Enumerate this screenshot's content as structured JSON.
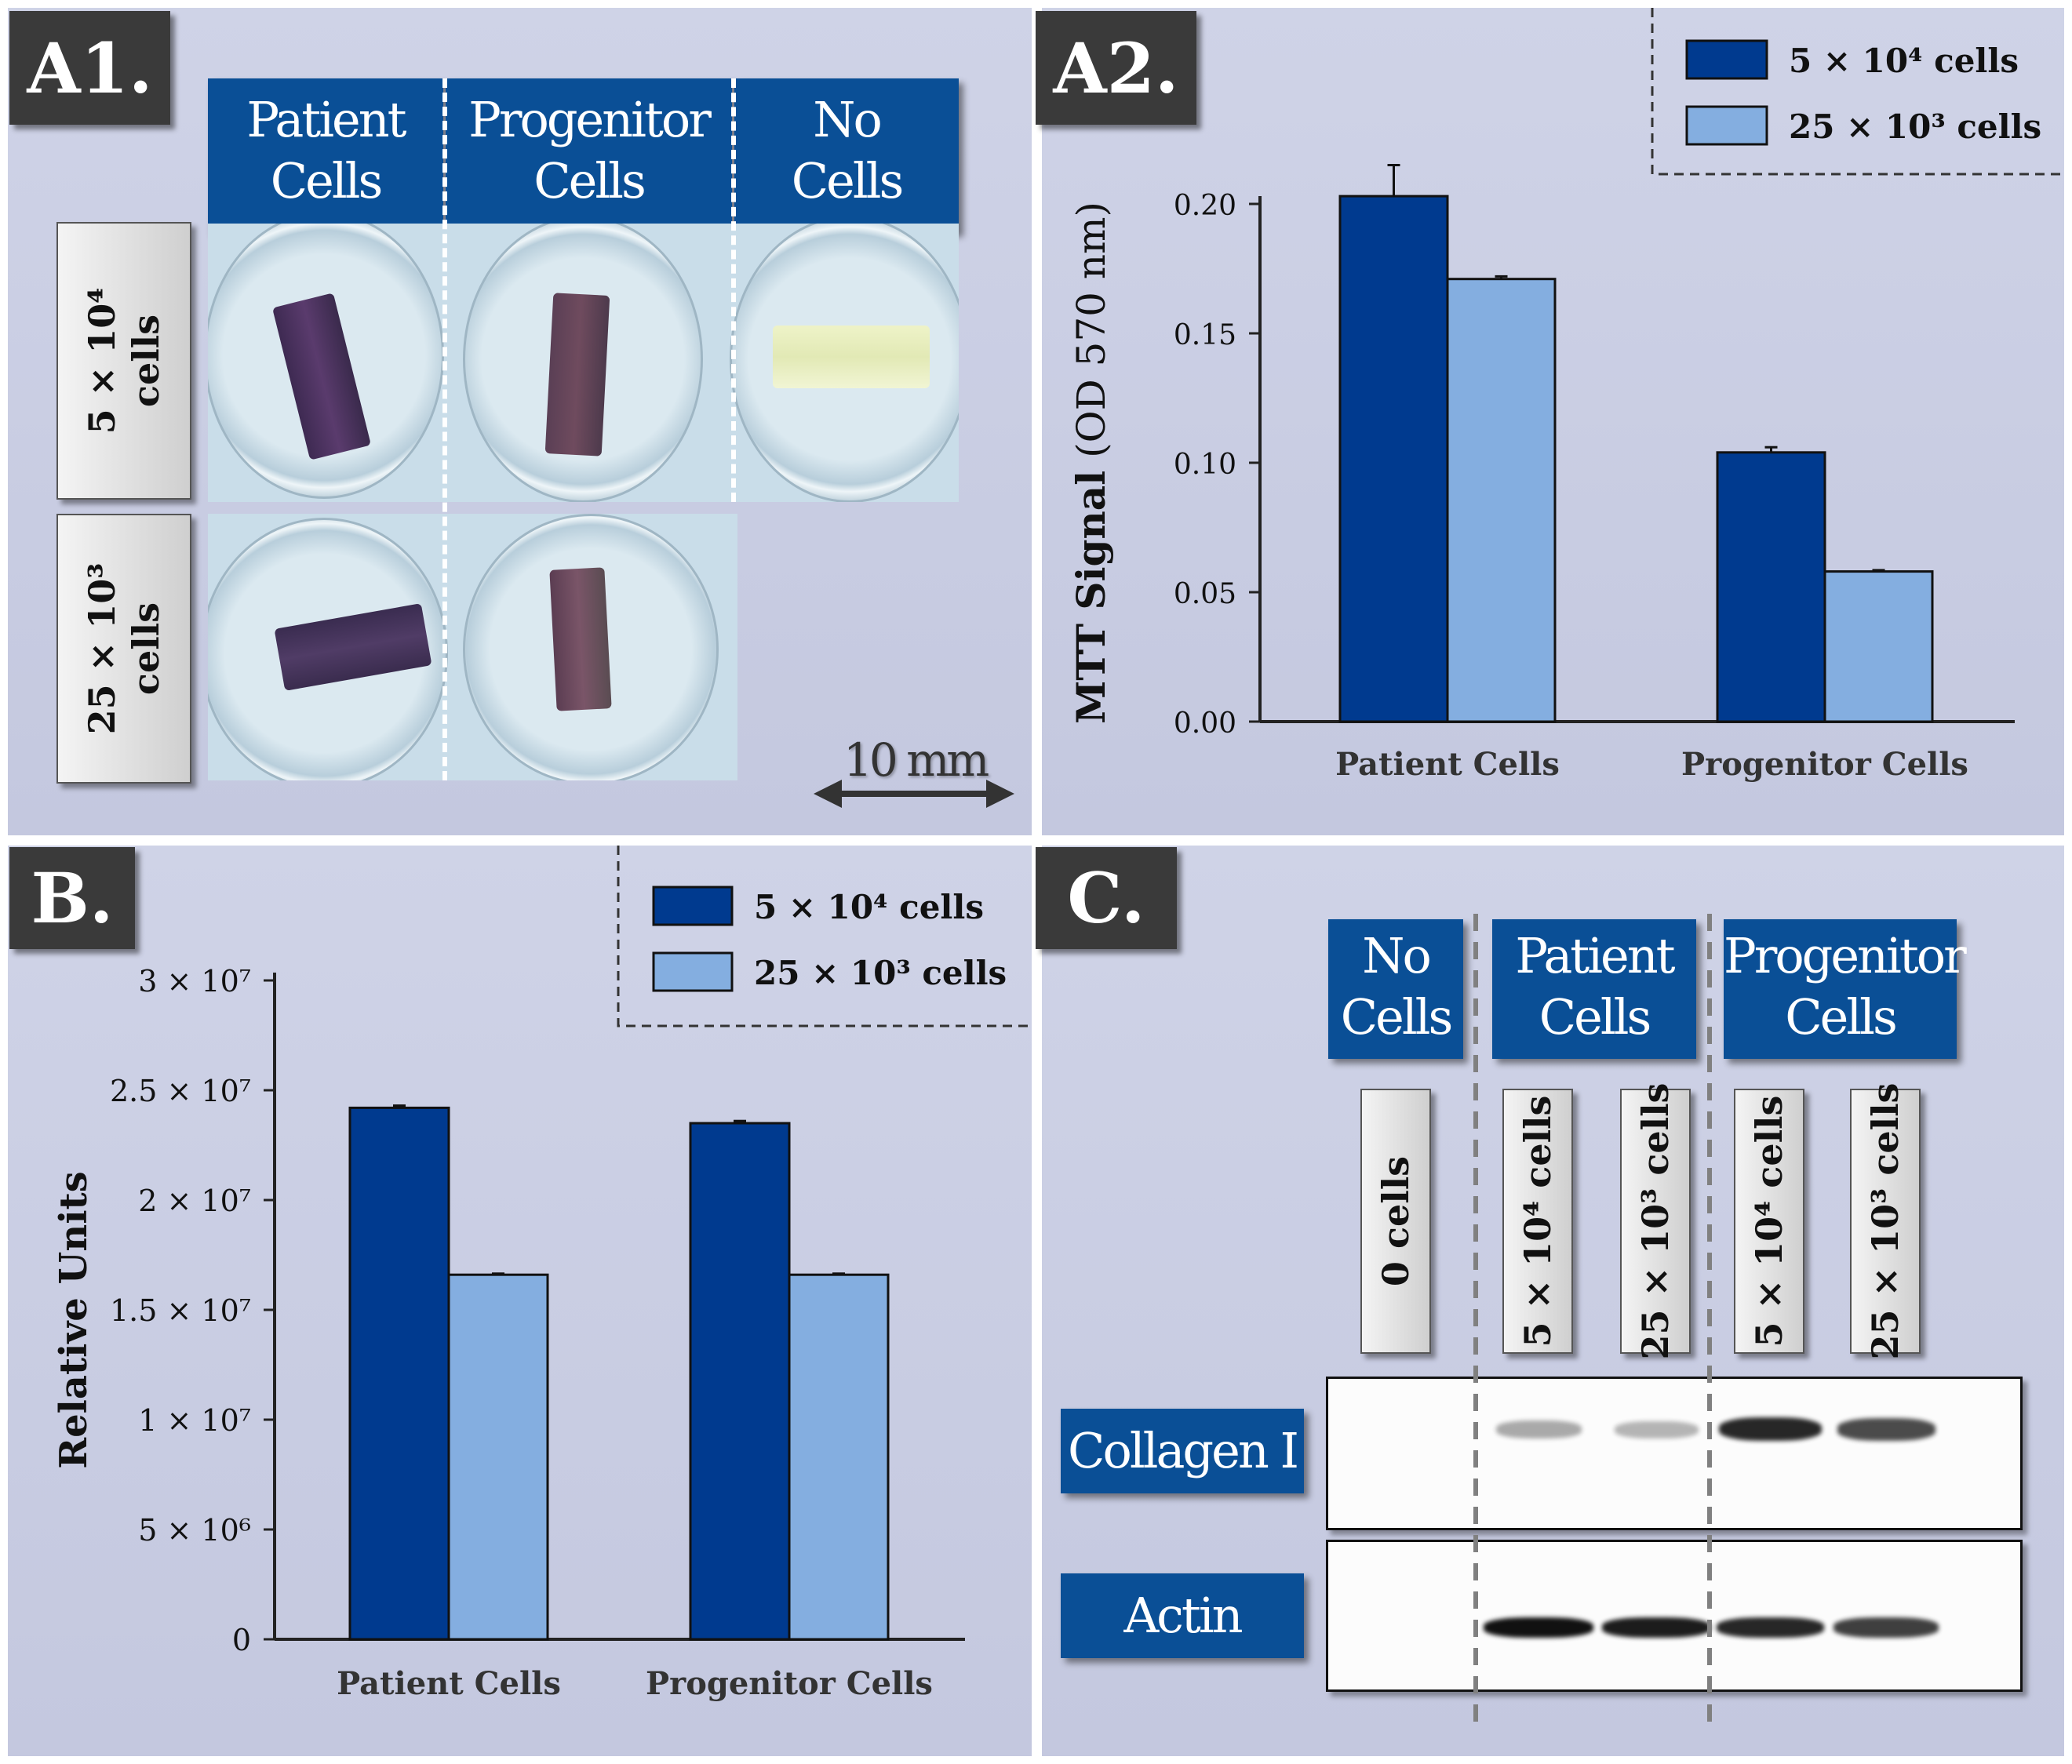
{
  "panels": {
    "a1": {
      "label": "A1.",
      "col_headers": [
        {
          "line1": "Patient",
          "line2": "Cells"
        },
        {
          "line1": "Progenitor",
          "line2": "Cells"
        },
        {
          "line1": "No",
          "line2": "Cells"
        }
      ],
      "row_headers": [
        {
          "line1": "5 × 10⁴",
          "line2": "cells"
        },
        {
          "line1": "25 × 10³",
          "line2": "cells"
        }
      ],
      "scale_bar": "10 mm"
    },
    "a2": {
      "label": "A2."
    },
    "b": {
      "label": "B."
    },
    "c": {
      "label": "C.",
      "group_headers": [
        {
          "line1": "No",
          "line2": "Cells"
        },
        {
          "line1": "Patient",
          "line2": "Cells"
        },
        {
          "line1": "Progenitor",
          "line2": "Cells"
        }
      ],
      "lanes": [
        "0 cells",
        "5 × 10⁴ cells",
        "25 × 10³ cells",
        "5 × 10⁴ cells",
        "25 × 10³ cells"
      ],
      "blots": [
        {
          "label": "Collagen I",
          "intensities": [
            0,
            0.35,
            0.3,
            0.9,
            0.75
          ]
        },
        {
          "label": "Actin",
          "intensities": [
            0,
            1,
            0.95,
            0.9,
            0.8
          ]
        }
      ]
    }
  },
  "colors": {
    "dark": "#003a8f",
    "light": "#84aee0"
  },
  "chart_data": [
    {
      "id": "A2",
      "type": "bar",
      "title": "",
      "categories": [
        "Patient Cells",
        "Progenitor Cells"
      ],
      "series": [
        {
          "name": "5 × 10⁴ cells",
          "values": [
            0.203,
            0.104
          ],
          "errors": [
            0.012,
            0.002
          ]
        },
        {
          "name": "25 × 10³ cells",
          "values": [
            0.171,
            0.058
          ],
          "errors": [
            0.001,
            0.0005
          ]
        }
      ],
      "ylabel_bold": "MTT Signal",
      "ylabel_rest": " (OD 570 nm)",
      "xlabel": "",
      "ylim": [
        0,
        0.2
      ],
      "yticks": [
        "0.00",
        "0.05",
        "0.10",
        "0.15",
        "0.20"
      ],
      "legend": [
        "5 × 10⁴ cells",
        "25 × 10³ cells"
      ],
      "legend_position": "top-right"
    },
    {
      "id": "B",
      "type": "bar",
      "title": "",
      "categories": [
        "Patient Cells",
        "Progenitor Cells"
      ],
      "series": [
        {
          "name": "5 × 10⁴ cells",
          "values": [
            24200000,
            23500000
          ],
          "errors": [
            100000,
            100000
          ]
        },
        {
          "name": "25 × 10³ cells",
          "values": [
            16600000,
            16600000
          ],
          "errors": [
            50000,
            50000
          ]
        }
      ],
      "ylabel": "Relative Units",
      "xlabel": "",
      "ylim": [
        0,
        30000000
      ],
      "yticks": [
        "0",
        "5 × 10⁶",
        "1 × 10⁷",
        "1.5 × 10⁷",
        "2 × 10⁷",
        "2.5 × 10⁷",
        "3 × 10⁷"
      ],
      "legend": [
        "5 × 10⁴ cells",
        "25 × 10³ cells"
      ],
      "legend_position": "top-right"
    }
  ]
}
